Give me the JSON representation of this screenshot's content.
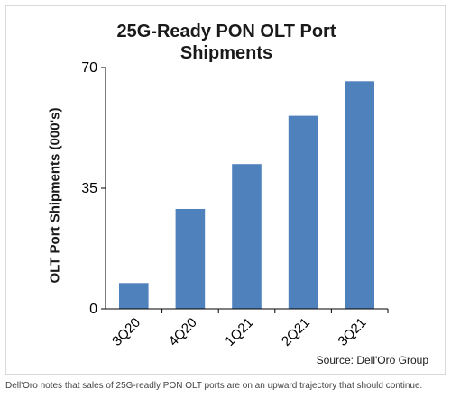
{
  "chart_data": {
    "type": "bar",
    "title_lines": [
      "25G-Ready PON OLT Port",
      "Shipments"
    ],
    "ylabel": "OLT Port Shipments (000's)",
    "xlabel": "",
    "categories": [
      "3Q20",
      "4Q20",
      "1Q21",
      "2Q21",
      "3Q21"
    ],
    "values": [
      7.5,
      29,
      42,
      56,
      66
    ],
    "ylim": [
      0,
      70
    ],
    "yticks": [
      0,
      35,
      70
    ],
    "grid": false,
    "bar_color": "#4f81bd",
    "source": "Source: Dell'Oro Group"
  },
  "caption": "Dell'Oro notes that sales of 25G-readly PON OLT ports are on an upward trajectory that should continue."
}
